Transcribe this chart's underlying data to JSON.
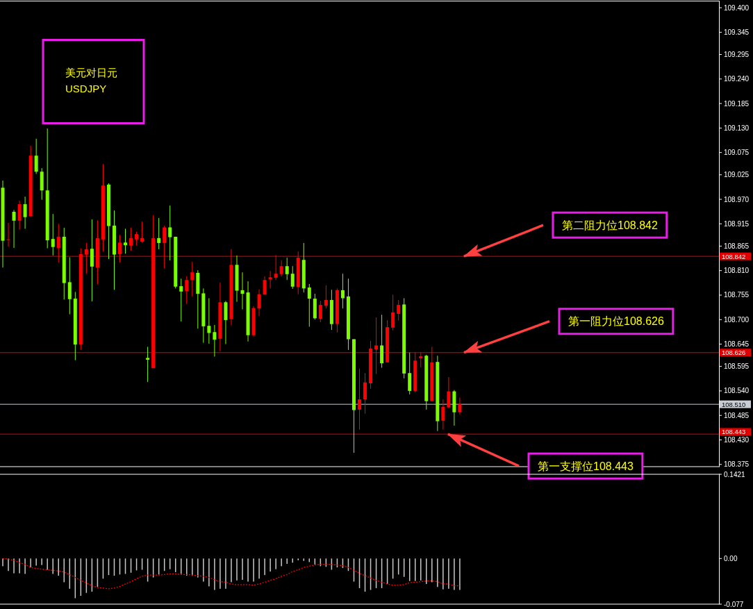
{
  "chart_data": [
    {
      "type": "candlestick",
      "title": "美元对日元",
      "subtitle": "USDJPY",
      "tick_labels": "y",
      "categories": [
        null,
        null,
        null,
        null,
        null,
        null,
        null,
        null,
        null,
        null,
        null,
        null,
        null,
        null,
        null,
        null,
        null,
        null,
        null,
        null,
        null,
        null,
        null,
        null,
        null,
        null,
        null,
        null,
        null,
        null,
        null,
        null,
        null,
        null,
        null,
        null,
        null,
        null,
        null,
        null,
        null,
        null,
        null,
        null,
        null,
        null,
        null,
        null,
        null,
        null,
        null,
        null,
        null,
        null,
        null,
        null,
        null,
        null,
        null,
        null,
        null,
        null,
        null,
        null,
        null,
        null,
        null,
        null,
        null,
        null,
        null,
        null,
        null,
        null,
        null,
        null,
        null,
        null,
        null,
        null,
        null,
        null,
        null,
        null,
        null,
        null,
        null,
        null,
        null,
        null,
        null,
        null,
        null,
        null,
        null,
        null,
        null,
        null,
        null,
        null,
        null,
        null,
        null,
        null,
        null,
        null,
        null,
        null,
        null,
        null,
        null,
        null,
        null,
        null,
        null,
        null,
        null,
        null,
        null,
        null,
        null,
        null,
        null,
        null,
        null,
        null,
        null,
        null,
        null
      ],
      "ohlc": [
        [
          108.996,
          109.012,
          108.817,
          108.877
        ],
        [
          108.879,
          108.917,
          108.864,
          108.88
        ],
        [
          108.942,
          108.946,
          108.861,
          108.922
        ],
        [
          108.922,
          108.967,
          108.902,
          108.959
        ],
        [
          108.959,
          108.976,
          108.904,
          108.93
        ],
        [
          108.932,
          109.09,
          108.93,
          109.068
        ],
        [
          109.068,
          109.106,
          109.027,
          109.032
        ],
        [
          109.032,
          109.04,
          108.969,
          108.99
        ],
        [
          108.99,
          109.129,
          108.86,
          108.878
        ],
        [
          108.881,
          108.937,
          108.844,
          108.863
        ],
        [
          108.861,
          108.915,
          108.828,
          108.886
        ],
        [
          108.886,
          108.906,
          108.745,
          108.782
        ],
        [
          108.784,
          108.84,
          108.712,
          108.746
        ],
        [
          108.747,
          108.762,
          108.609,
          108.644
        ],
        [
          108.644,
          108.86,
          108.632,
          108.847
        ],
        [
          108.846,
          108.872,
          108.803,
          108.858
        ],
        [
          108.859,
          108.925,
          108.741,
          108.819
        ],
        [
          108.817,
          108.923,
          108.78,
          108.883
        ],
        [
          108.88,
          109.049,
          108.853,
          109.001
        ],
        [
          109.003,
          109.006,
          108.836,
          108.91
        ],
        [
          108.911,
          108.945,
          108.767,
          108.846
        ],
        [
          108.847,
          108.89,
          108.828,
          108.873
        ],
        [
          108.873,
          108.904,
          108.848,
          108.867
        ],
        [
          108.866,
          108.906,
          108.855,
          108.883
        ],
        [
          108.88,
          108.897,
          108.867,
          108.892
        ],
        [
          108.875,
          108.92,
          108.873,
          108.883
        ],
        [
          108.614,
          108.639,
          108.56,
          108.61
        ],
        [
          108.591,
          108.934,
          108.591,
          108.883
        ],
        [
          108.883,
          108.928,
          108.858,
          108.872
        ],
        [
          108.872,
          108.911,
          108.815,
          108.907
        ],
        [
          108.907,
          108.956,
          108.833,
          108.885
        ],
        [
          108.886,
          108.886,
          108.77,
          108.774
        ],
        [
          108.775,
          108.792,
          108.696,
          108.763
        ],
        [
          108.764,
          108.797,
          108.735,
          108.789
        ],
        [
          108.789,
          108.83,
          108.752,
          108.806
        ],
        [
          108.805,
          108.811,
          108.68,
          108.758
        ],
        [
          108.759,
          108.77,
          108.648,
          108.685
        ],
        [
          108.686,
          108.748,
          108.646,
          108.67
        ],
        [
          108.672,
          108.688,
          108.617,
          108.655
        ],
        [
          108.657,
          108.783,
          108.629,
          108.739
        ],
        [
          108.739,
          108.742,
          108.645,
          108.699
        ],
        [
          108.701,
          108.858,
          108.687,
          108.823
        ],
        [
          108.823,
          108.844,
          108.74,
          108.765
        ],
        [
          108.766,
          108.806,
          108.723,
          108.758
        ],
        [
          108.761,
          108.786,
          108.651,
          108.665
        ],
        [
          108.665,
          108.73,
          108.662,
          108.726
        ],
        [
          108.725,
          108.768,
          108.708,
          108.757
        ],
        [
          108.756,
          108.797,
          108.756,
          108.789
        ],
        [
          108.79,
          108.809,
          108.77,
          108.795
        ],
        [
          108.794,
          108.845,
          108.789,
          108.803
        ],
        [
          108.802,
          108.833,
          108.797,
          108.82
        ],
        [
          108.82,
          108.839,
          108.789,
          108.802
        ],
        [
          108.803,
          108.82,
          108.769,
          108.774
        ],
        [
          108.773,
          108.853,
          108.757,
          108.839
        ],
        [
          108.834,
          108.872,
          108.761,
          108.77
        ],
        [
          108.772,
          108.78,
          108.684,
          108.747
        ],
        [
          108.747,
          108.758,
          108.7,
          108.703
        ],
        [
          108.702,
          108.742,
          108.694,
          108.733
        ],
        [
          108.731,
          108.777,
          108.725,
          108.744
        ],
        [
          108.744,
          108.767,
          108.677,
          108.69
        ],
        [
          108.69,
          108.77,
          108.671,
          108.766
        ],
        [
          108.766,
          108.803,
          108.725,
          108.748
        ],
        [
          108.752,
          108.792,
          108.632,
          108.656
        ],
        [
          108.656,
          108.656,
          108.401,
          108.497
        ],
        [
          108.498,
          108.59,
          108.453,
          108.521
        ],
        [
          108.521,
          108.58,
          108.489,
          108.559
        ],
        [
          108.557,
          108.652,
          108.545,
          108.635
        ],
        [
          108.633,
          108.705,
          108.578,
          108.642
        ],
        [
          108.642,
          108.711,
          108.592,
          108.602
        ],
        [
          108.604,
          108.699,
          108.604,
          108.683
        ],
        [
          108.682,
          108.756,
          108.676,
          108.716
        ],
        [
          108.713,
          108.744,
          108.698,
          108.733
        ],
        [
          108.734,
          108.748,
          108.568,
          108.579
        ],
        [
          108.58,
          108.626,
          108.532,
          108.54
        ],
        [
          108.54,
          108.626,
          108.537,
          108.608
        ],
        [
          108.613,
          108.627,
          108.593,
          108.618
        ],
        [
          108.619,
          108.621,
          108.498,
          108.517
        ],
        [
          108.517,
          108.639,
          108.517,
          108.604
        ],
        [
          108.605,
          108.619,
          108.45,
          108.472
        ],
        [
          108.473,
          108.521,
          108.453,
          108.504
        ],
        [
          108.503,
          108.571,
          108.501,
          108.539
        ],
        [
          108.539,
          108.542,
          108.462,
          108.492
        ],
        [
          108.492,
          108.525,
          108.487,
          108.51
        ],
        null,
        null,
        null,
        null,
        null,
        null,
        null,
        null,
        null,
        null,
        null,
        null,
        null,
        null,
        null,
        null,
        null,
        null,
        null,
        null,
        null,
        null,
        null,
        null,
        null,
        null,
        null,
        null,
        null,
        null,
        null,
        null,
        null,
        null,
        null,
        null,
        null,
        null,
        null,
        null,
        null,
        null,
        null,
        null,
        null,
        null
      ],
      "colors": [
        "#7cfc00",
        "#ff0000",
        "#7cfc00",
        "#ff0000",
        "#7cfc00",
        "#ff0000",
        "#7cfc00",
        "#7cfc00",
        "#7cfc00",
        "#7cfc00",
        "#ff0000",
        "#7cfc00",
        "#7cfc00",
        "#7cfc00",
        "#ff0000",
        "#ff0000",
        "#7cfc00",
        "#ff0000",
        "#ff0000",
        "#7cfc00",
        "#7cfc00",
        "#ff0000",
        "#7cfc00",
        "#ff0000",
        "#ff0000",
        "#ff0000",
        "#7cfc00",
        "#ff0000",
        "#7cfc00",
        "#ff0000",
        "#7cfc00",
        "#7cfc00",
        "#7cfc00",
        "#ff0000",
        "#ff0000",
        "#7cfc00",
        "#7cfc00",
        "#7cfc00",
        "#7cfc00",
        "#ff0000",
        "#7cfc00",
        "#ff0000",
        "#7cfc00",
        "#7cfc00",
        "#7cfc00",
        "#ff0000",
        "#ff0000",
        "#ff0000",
        "#ff0000",
        "#ff0000",
        "#ff0000",
        "#7cfc00",
        "#7cfc00",
        "#ff0000",
        "#7cfc00",
        "#7cfc00",
        "#7cfc00",
        "#ff0000",
        "#ff0000",
        "#7cfc00",
        "#ff0000",
        "#7cfc00",
        "#7cfc00",
        "#7cfc00",
        "#ff0000",
        "#ff0000",
        "#ff0000",
        "#ff0000",
        "#7cfc00",
        "#ff0000",
        "#ff0000",
        "#ff0000",
        "#7cfc00",
        "#7cfc00",
        "#ff0000",
        "#ff0000",
        "#7cfc00",
        "#ff0000",
        "#7cfc00",
        "#ff0000",
        "#ff0000",
        "#7cfc00",
        "#ff0000",
        null,
        null,
        null,
        null,
        null,
        null,
        null,
        null,
        null,
        null,
        null,
        null,
        null,
        null,
        null,
        null,
        null,
        null,
        null,
        null,
        null,
        null,
        null,
        null,
        null,
        null,
        null,
        null,
        null,
        null,
        null,
        null,
        null,
        null,
        null,
        null,
        null,
        null,
        null,
        null,
        null,
        null,
        null,
        null,
        null,
        null
      ],
      "ylim": [
        108.37,
        109.415
      ],
      "yticks": [
        {
          "value": 109.4,
          "label": "109.400"
        },
        109.345,
        109.295,
        {
          "value": 109.24,
          "label": "109.240"
        },
        109.185,
        {
          "value": 109.13,
          "label": "109.130"
        },
        109.075,
        109.025,
        {
          "value": 108.97,
          "label": "108.970"
        },
        108.915,
        108.865,
        {
          "value": 108.81,
          "label": "108.810"
        },
        108.755,
        {
          "value": 108.7,
          "label": "108.700"
        },
        108.645,
        108.595,
        {
          "value": 108.54,
          "label": "108.540"
        },
        108.485,
        {
          "value": 108.43,
          "label": "108.430"
        },
        108.375
      ],
      "ref_lines": [
        {
          "axis": "y",
          "value": 108.842,
          "label": "108.842",
          "color": "#e00000"
        },
        {
          "axis": "y",
          "value": 108.626,
          "label": "108.626",
          "color": "#e00000"
        },
        {
          "axis": "y",
          "value": 108.51,
          "label": "108.510",
          "color": "#c8ccd4"
        },
        {
          "axis": "y",
          "value": 108.443,
          "label": "108.443",
          "color": "#e00000"
        }
      ],
      "annotations": [
        {
          "text": "第二阻力位108.842",
          "y": 108.842
        },
        {
          "text": "第一阻力位108.626",
          "y": 108.626
        },
        {
          "text": "第一支撑位108.443",
          "y": 108.443
        }
      ]
    },
    {
      "type": "bar",
      "tick_labels": "y",
      "categories": [
        null,
        null,
        null,
        null,
        null,
        null,
        null,
        null,
        null,
        null,
        null,
        null,
        null,
        null,
        null,
        null,
        null,
        null,
        null,
        null,
        null,
        null,
        null,
        null,
        null,
        null,
        null,
        null,
        null,
        null,
        null,
        null,
        null,
        null,
        null,
        null,
        null,
        null,
        null,
        null,
        null,
        null,
        null,
        null,
        null,
        null,
        null,
        null,
        null,
        null,
        null,
        null,
        null,
        null,
        null,
        null,
        null,
        null,
        null,
        null,
        null,
        null,
        null,
        null,
        null,
        null,
        null,
        null,
        null,
        null,
        null,
        null,
        null,
        null,
        null,
        null,
        null,
        null,
        null,
        null,
        null,
        null,
        null,
        null,
        null,
        null,
        null,
        null,
        null,
        null,
        null,
        null,
        null,
        null,
        null,
        null,
        null,
        null,
        null,
        null,
        null,
        null,
        null,
        null,
        null,
        null,
        null,
        null,
        null,
        null,
        null,
        null,
        null,
        null,
        null,
        null,
        null,
        null,
        null,
        null,
        null,
        null,
        null,
        null,
        null,
        null,
        null,
        null,
        null
      ],
      "series": [
        {
          "type": "bar",
          "color": "#c8c8c8",
          "values": [
            -0.013,
            -0.021,
            -0.025,
            -0.025,
            -0.026,
            -0.015,
            -0.012,
            -0.011,
            -0.019,
            -0.026,
            -0.029,
            -0.04,
            -0.051,
            -0.067,
            -0.063,
            -0.058,
            -0.056,
            -0.048,
            -0.034,
            -0.028,
            -0.029,
            -0.027,
            -0.026,
            -0.024,
            -0.02,
            -0.019,
            -0.039,
            -0.032,
            -0.027,
            -0.021,
            -0.018,
            -0.023,
            -0.026,
            -0.029,
            -0.029,
            -0.032,
            -0.039,
            -0.047,
            -0.053,
            -0.051,
            -0.051,
            -0.04,
            -0.037,
            -0.036,
            -0.039,
            -0.039,
            -0.034,
            -0.028,
            -0.022,
            -0.018,
            -0.013,
            -0.009,
            -0.007,
            -0.003,
            -0.004,
            -0.006,
            -0.01,
            -0.013,
            -0.014,
            -0.019,
            -0.015,
            -0.016,
            -0.021,
            -0.039,
            -0.05,
            -0.056,
            -0.053,
            -0.05,
            -0.05,
            -0.043,
            -0.034,
            -0.027,
            -0.031,
            -0.038,
            -0.038,
            -0.037,
            -0.043,
            -0.04,
            -0.048,
            -0.052,
            -0.051,
            -0.053,
            -0.053,
            null,
            null,
            null,
            null,
            null,
            null,
            null,
            null,
            null,
            null,
            null,
            null,
            null,
            null,
            null,
            null,
            null,
            null,
            null,
            null,
            null,
            null,
            null,
            null,
            null,
            null,
            null,
            null,
            null,
            null,
            null,
            null,
            null,
            null,
            null,
            null,
            null,
            null,
            null,
            null,
            null,
            null,
            null,
            null,
            null,
            null
          ]
        },
        {
          "type": "line",
          "color": "#ff0000",
          "line_style": "dotted",
          "values": [
            0,
            -0.001,
            -0.003,
            -0.007,
            -0.01,
            -0.015,
            -0.017,
            -0.018,
            -0.019,
            -0.02,
            -0.021,
            -0.023,
            -0.027,
            -0.032,
            -0.037,
            -0.041,
            -0.046,
            -0.049,
            -0.05,
            -0.051,
            -0.05,
            -0.047,
            -0.043,
            -0.039,
            -0.034,
            -0.03,
            -0.028,
            -0.028,
            -0.028,
            -0.027,
            -0.026,
            -0.026,
            -0.027,
            -0.027,
            -0.028,
            -0.029,
            -0.03,
            -0.032,
            -0.036,
            -0.039,
            -0.04,
            -0.043,
            -0.044,
            -0.044,
            -0.044,
            -0.045,
            -0.043,
            -0.04,
            -0.037,
            -0.034,
            -0.03,
            -0.027,
            -0.022,
            -0.019,
            -0.015,
            -0.013,
            -0.011,
            -0.01,
            -0.01,
            -0.01,
            -0.011,
            -0.012,
            -0.015,
            -0.02,
            -0.025,
            -0.029,
            -0.033,
            -0.037,
            -0.04,
            -0.043,
            -0.045,
            -0.045,
            -0.044,
            -0.041,
            -0.04,
            -0.039,
            -0.038,
            -0.038,
            -0.039,
            -0.043,
            -0.043,
            -0.046,
            -0.046,
            null,
            null,
            null,
            null,
            null,
            null,
            null,
            null,
            null,
            null,
            null,
            null,
            null,
            null,
            null,
            null,
            null,
            null,
            null,
            null,
            null,
            null,
            null,
            null,
            null,
            null,
            null,
            null,
            null,
            null,
            null,
            null,
            null,
            null,
            null,
            null,
            null,
            null,
            null,
            null,
            null,
            null,
            null,
            null,
            null,
            null
          ]
        }
      ],
      "ylim": [
        -0.077,
        0.1421
      ],
      "yticks": [
        0.1421,
        {
          "value": 0,
          "label": "0.00"
        },
        -0.077
      ]
    }
  ]
}
